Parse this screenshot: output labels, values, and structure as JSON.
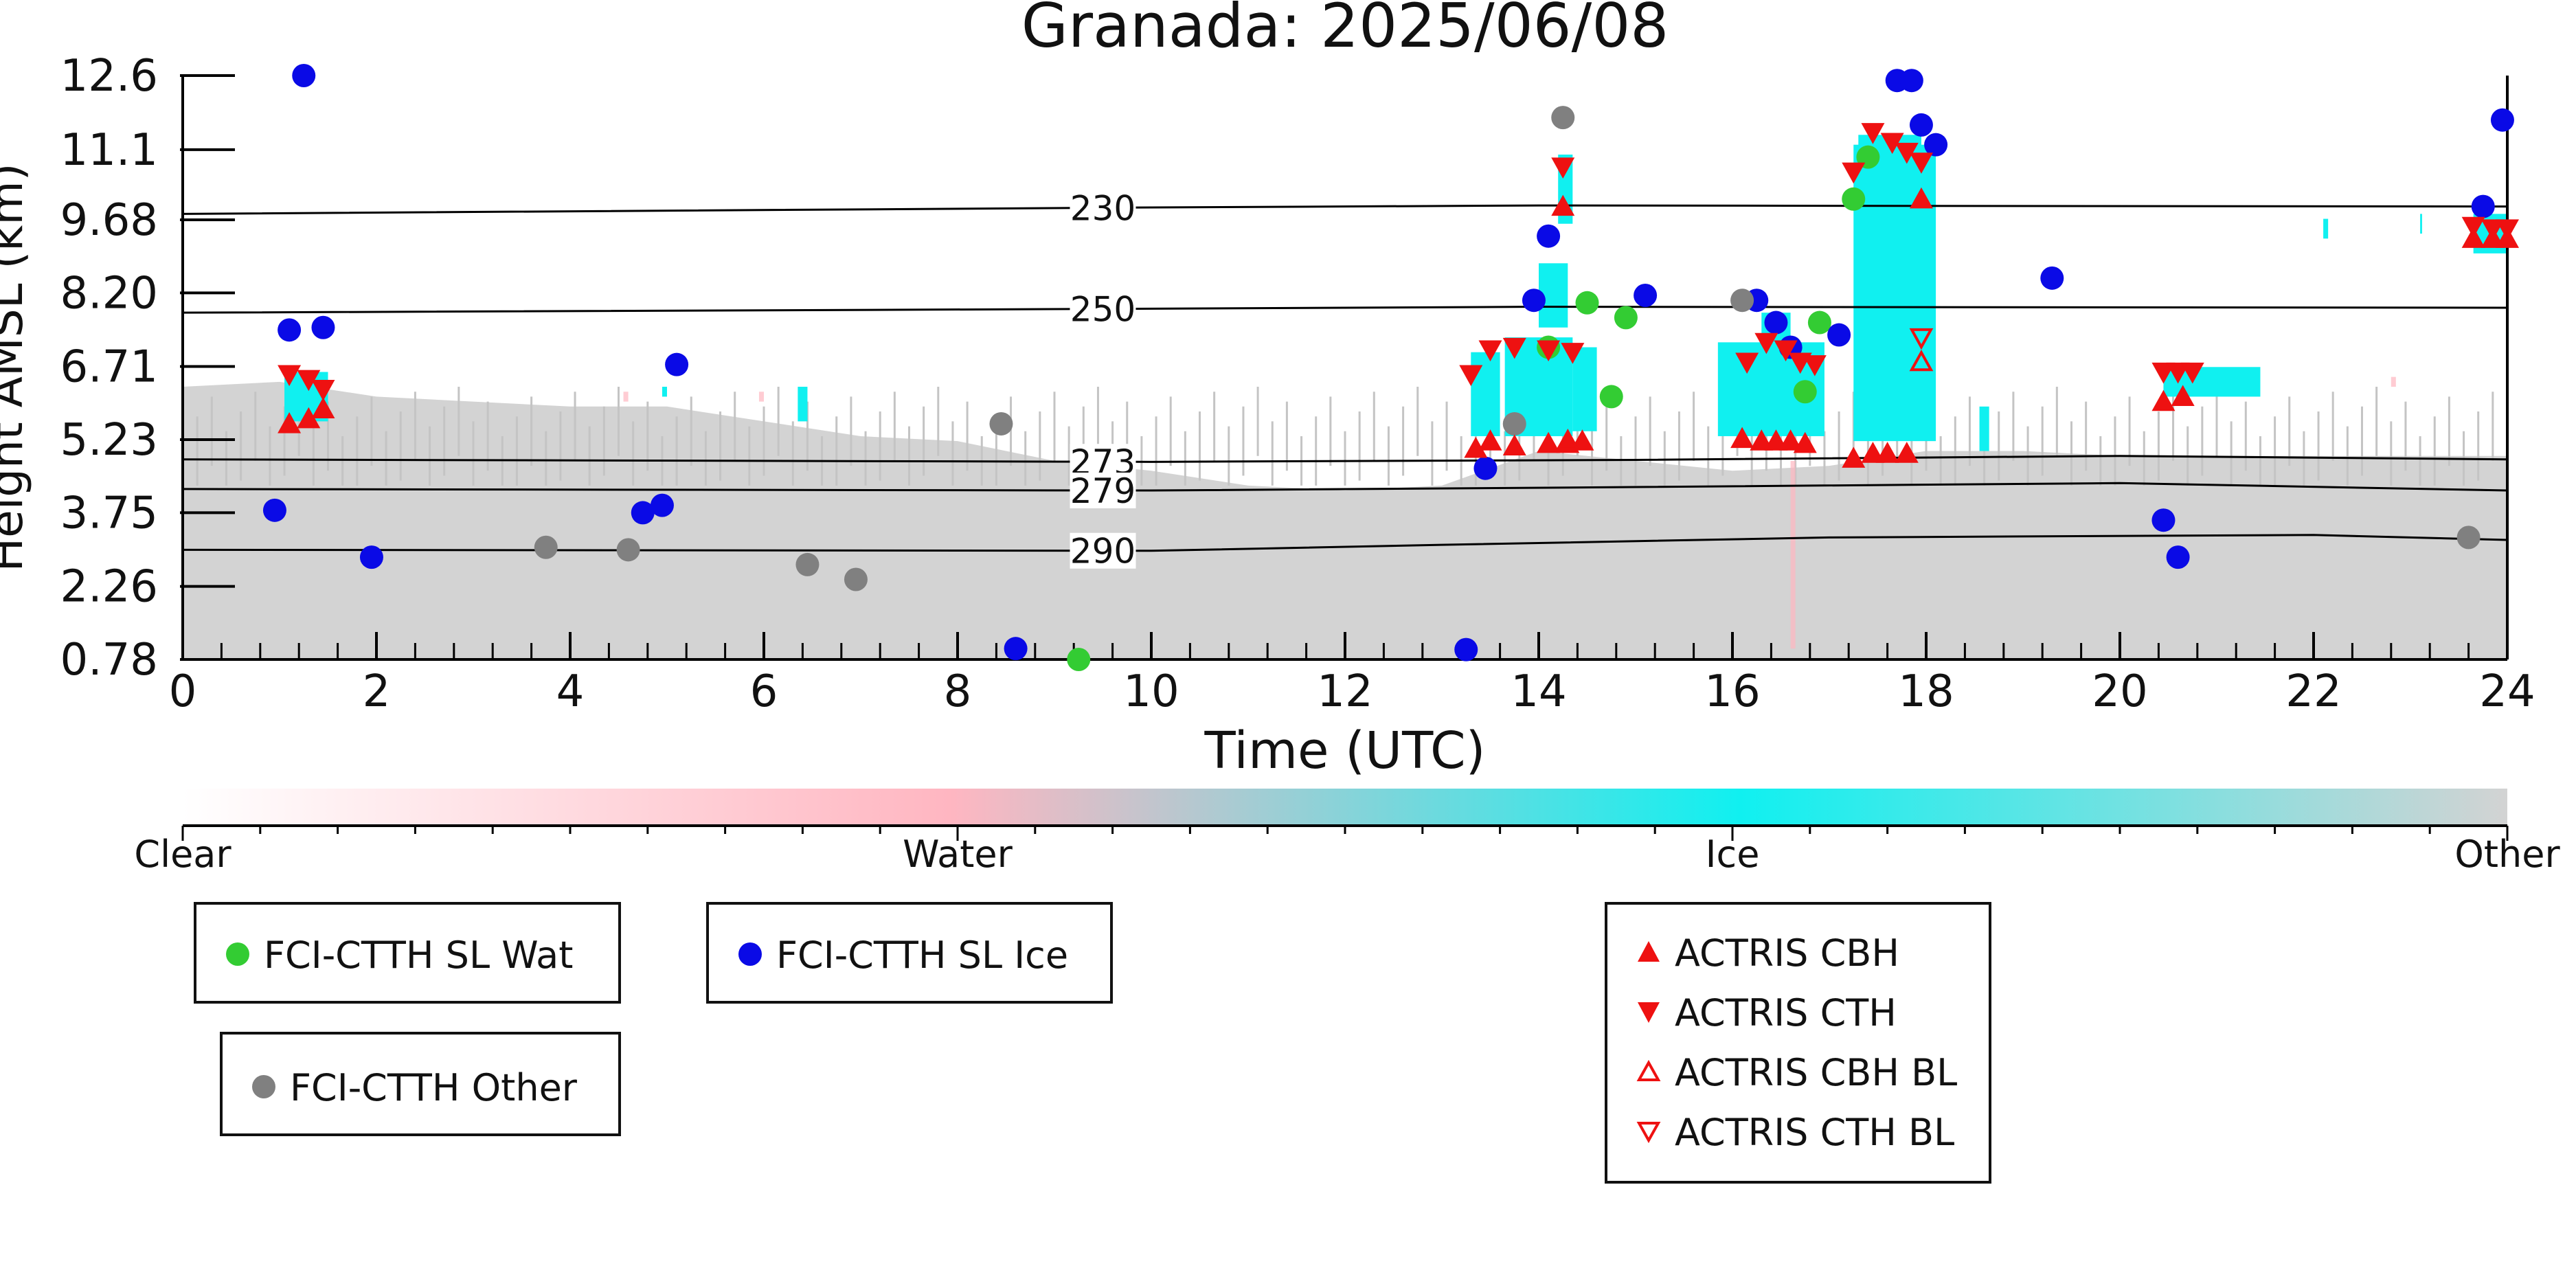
{
  "chart_data": {
    "type": "scatter",
    "title": "Granada: 2025/06/08",
    "xlabel": "Time (UTC)",
    "ylabel": "Height AMSL (km)",
    "xlim": [
      0,
      24
    ],
    "ylim": [
      0.78,
      12.6
    ],
    "x_ticks": [
      "0",
      "2",
      "4",
      "6",
      "8",
      "10",
      "12",
      "14",
      "16",
      "18",
      "20",
      "22",
      "24"
    ],
    "y_ticks": [
      "0.78",
      "2.26",
      "3.75",
      "5.23",
      "6.71",
      "8.20",
      "9.68",
      "11.1",
      "12.6"
    ],
    "colorbar": {
      "labels": [
        "Clear",
        "Water",
        "Ice",
        "Other"
      ],
      "colors": [
        "#ffffff",
        "#ffb6c1",
        "#10f0f0",
        "#d3d3d3"
      ]
    },
    "isotherms": [
      {
        "label": "230",
        "points": [
          [
            0,
            9.8
          ],
          [
            10,
            9.93
          ],
          [
            14,
            9.97
          ],
          [
            24,
            9.95
          ]
        ]
      },
      {
        "label": "250",
        "points": [
          [
            0,
            7.8
          ],
          [
            10,
            7.88
          ],
          [
            14,
            7.92
          ],
          [
            24,
            7.9
          ]
        ]
      },
      {
        "label": "273",
        "points": [
          [
            0,
            4.83
          ],
          [
            10,
            4.78
          ],
          [
            15,
            4.82
          ],
          [
            20,
            4.9
          ],
          [
            24,
            4.83
          ]
        ]
      },
      {
        "label": "279",
        "points": [
          [
            0,
            4.23
          ],
          [
            10,
            4.2
          ],
          [
            15,
            4.27
          ],
          [
            20,
            4.35
          ],
          [
            24,
            4.2
          ]
        ]
      },
      {
        "label": "290",
        "points": [
          [
            0,
            3.0
          ],
          [
            10,
            2.98
          ],
          [
            13,
            3.1
          ],
          [
            17,
            3.25
          ],
          [
            22,
            3.3
          ],
          [
            24,
            3.2
          ]
        ]
      }
    ],
    "series": [
      {
        "name": "FCI-CTTH SL Wat",
        "color": "#33cc33",
        "marker": "circle",
        "points": [
          [
            9.25,
            0.78
          ],
          [
            14.1,
            7.1
          ],
          [
            14.5,
            8.0
          ],
          [
            14.75,
            6.1
          ],
          [
            14.9,
            7.7
          ],
          [
            16.75,
            6.2
          ],
          [
            16.9,
            7.6
          ],
          [
            17.25,
            10.1
          ],
          [
            17.4,
            10.95
          ]
        ]
      },
      {
        "name": "FCI-CTTH SL Ice",
        "color": "#0a0ae6",
        "marker": "circle",
        "points": [
          [
            0.95,
            3.8
          ],
          [
            1.1,
            7.45
          ],
          [
            1.25,
            12.6
          ],
          [
            1.45,
            7.5
          ],
          [
            1.95,
            2.85
          ],
          [
            4.75,
            3.75
          ],
          [
            4.95,
            3.9
          ],
          [
            5.1,
            6.75
          ],
          [
            8.6,
            1.0
          ],
          [
            13.25,
            0.98
          ],
          [
            13.45,
            4.65
          ],
          [
            13.95,
            8.05
          ],
          [
            14.1,
            9.35
          ],
          [
            15.1,
            8.15
          ],
          [
            16.25,
            8.05
          ],
          [
            16.45,
            7.6
          ],
          [
            16.6,
            7.1
          ],
          [
            17.1,
            7.35
          ],
          [
            17.7,
            12.5
          ],
          [
            17.85,
            12.5
          ],
          [
            17.95,
            11.6
          ],
          [
            18.1,
            11.2
          ],
          [
            19.3,
            8.5
          ],
          [
            20.45,
            3.6
          ],
          [
            20.6,
            2.85
          ],
          [
            23.75,
            9.95
          ],
          [
            23.95,
            11.7
          ]
        ]
      },
      {
        "name": "FCI-CTTH Other",
        "color": "#808080",
        "marker": "circle",
        "points": [
          [
            3.75,
            3.05
          ],
          [
            4.6,
            3.0
          ],
          [
            6.45,
            2.7
          ],
          [
            6.95,
            2.4
          ],
          [
            8.45,
            5.55
          ],
          [
            13.75,
            5.55
          ],
          [
            14.25,
            11.75
          ],
          [
            16.1,
            8.05
          ],
          [
            23.6,
            3.25
          ]
        ]
      },
      {
        "name": "ACTRIS CBH",
        "color": "#ee1111",
        "marker": "triangle-up",
        "points": [
          [
            1.1,
            5.55
          ],
          [
            1.3,
            5.65
          ],
          [
            1.45,
            5.85
          ],
          [
            13.35,
            5.05
          ],
          [
            13.5,
            5.2
          ],
          [
            13.75,
            5.1
          ],
          [
            14.1,
            5.15
          ],
          [
            14.3,
            5.15
          ],
          [
            14.45,
            5.2
          ],
          [
            14.25,
            9.95
          ],
          [
            16.1,
            5.25
          ],
          [
            16.3,
            5.2
          ],
          [
            16.45,
            5.2
          ],
          [
            16.6,
            5.2
          ],
          [
            16.75,
            5.15
          ],
          [
            17.25,
            4.85
          ],
          [
            17.45,
            4.95
          ],
          [
            17.6,
            4.95
          ],
          [
            17.8,
            4.95
          ],
          [
            17.95,
            10.1
          ],
          [
            20.45,
            6.0
          ],
          [
            20.65,
            6.1
          ],
          [
            23.65,
            9.3
          ],
          [
            23.85,
            9.3
          ],
          [
            24.0,
            9.3
          ]
        ]
      },
      {
        "name": "ACTRIS CTH",
        "color": "#ee1111",
        "marker": "triangle-down",
        "points": [
          [
            1.1,
            6.55
          ],
          [
            1.3,
            6.45
          ],
          [
            1.45,
            6.25
          ],
          [
            13.3,
            6.55
          ],
          [
            13.5,
            7.05
          ],
          [
            13.75,
            7.1
          ],
          [
            14.1,
            7.05
          ],
          [
            14.25,
            10.75
          ],
          [
            14.35,
            7.0
          ],
          [
            16.15,
            6.8
          ],
          [
            16.35,
            7.2
          ],
          [
            16.55,
            7.05
          ],
          [
            16.7,
            6.8
          ],
          [
            16.85,
            6.75
          ],
          [
            17.25,
            10.65
          ],
          [
            17.45,
            11.45
          ],
          [
            17.65,
            11.25
          ],
          [
            17.8,
            11.05
          ],
          [
            17.95,
            10.85
          ],
          [
            20.45,
            6.6
          ],
          [
            20.6,
            6.6
          ],
          [
            20.75,
            6.6
          ],
          [
            23.65,
            9.55
          ],
          [
            23.85,
            9.5
          ],
          [
            24.0,
            9.5
          ]
        ]
      },
      {
        "name": "ACTRIS CBH BL",
        "color": "#ee1111",
        "marker": "triangle-up-open",
        "points": [
          [
            14.3,
            5.2
          ],
          [
            17.95,
            6.8
          ]
        ]
      },
      {
        "name": "ACTRIS CTH BL",
        "color": "#ee1111",
        "marker": "triangle-down-open",
        "points": [
          [
            17.95,
            7.3
          ]
        ]
      }
    ]
  },
  "legends": {
    "box1": {
      "items": [
        {
          "label": "FCI-CTTH SL Wat",
          "color": "#33cc33",
          "marker": "circle"
        }
      ]
    },
    "box2": {
      "items": [
        {
          "label": "FCI-CTTH SL Ice",
          "color": "#0a0ae6",
          "marker": "circle"
        }
      ]
    },
    "box3": {
      "items": [
        {
          "label": "FCI-CTTH Other",
          "color": "#808080",
          "marker": "circle"
        }
      ]
    },
    "box4": {
      "items": [
        {
          "label": "ACTRIS CBH",
          "color": "#ee1111",
          "marker": "triangle-up"
        },
        {
          "label": "ACTRIS CTH",
          "color": "#ee1111",
          "marker": "triangle-down"
        },
        {
          "label": "ACTRIS CBH BL",
          "color": "#ee1111",
          "marker": "triangle-up-open"
        },
        {
          "label": "ACTRIS CTH BL",
          "color": "#ee1111",
          "marker": "triangle-down-open"
        }
      ]
    }
  }
}
